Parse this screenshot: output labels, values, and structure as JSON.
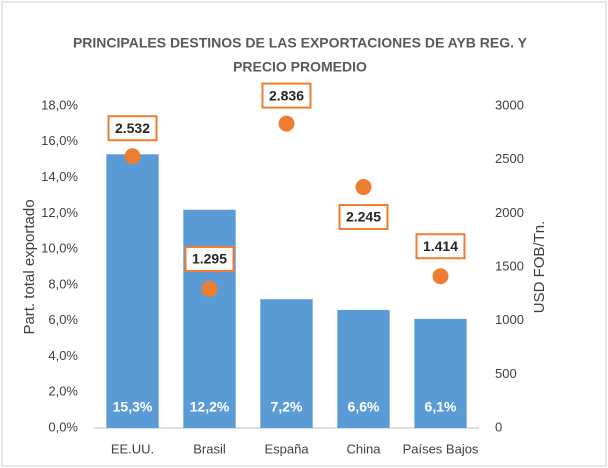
{
  "chart_data": {
    "type": "bar",
    "title": [
      "PRINCIPALES DESTINOS DE LAS EXPORTACIONES DE AYB REG. Y",
      "PRECIO PROMEDIO"
    ],
    "y_label": "Part. total exportado",
    "y2_label": "USD FOB/Tn.",
    "categories": [
      "EE.UU.",
      "Brasil",
      "España",
      "China",
      "Países Bajos"
    ],
    "series": [
      {
        "type": "bar",
        "color": "#5b9bd5",
        "values": [
          15.3,
          12.2,
          7.2,
          6.6,
          6.1
        ],
        "value_labels": [
          "15,3%",
          "12,2%",
          "7,2%",
          "6,6%",
          "6,1%"
        ]
      },
      {
        "type": "scatter",
        "axis": "y2",
        "color": "#ed7d31",
        "values": [
          2532,
          1295,
          2836,
          2245,
          1414
        ],
        "value_labels": [
          "2.532",
          "1.295",
          "2.836",
          "2.245",
          "1.414"
        ]
      }
    ],
    "ylim": [
      0,
      18
    ],
    "yticks": [
      {
        "value": 0,
        "label": "0,0%"
      },
      {
        "value": 2,
        "label": "2,0%"
      },
      {
        "value": 4,
        "label": "4,0%"
      },
      {
        "value": 6,
        "label": "6,0%"
      },
      {
        "value": 8,
        "label": "8,0%"
      },
      {
        "value": 10,
        "label": "10,0%"
      },
      {
        "value": 12,
        "label": "12,0%"
      },
      {
        "value": 14,
        "label": "14,0%"
      },
      {
        "value": 16,
        "label": "16,0%"
      },
      {
        "value": 18,
        "label": "18,0%"
      }
    ],
    "y2lim": [
      0,
      3000
    ],
    "y2ticks": [
      0,
      500,
      1000,
      1500,
      2000,
      2500,
      3000
    ],
    "grid": false
  }
}
